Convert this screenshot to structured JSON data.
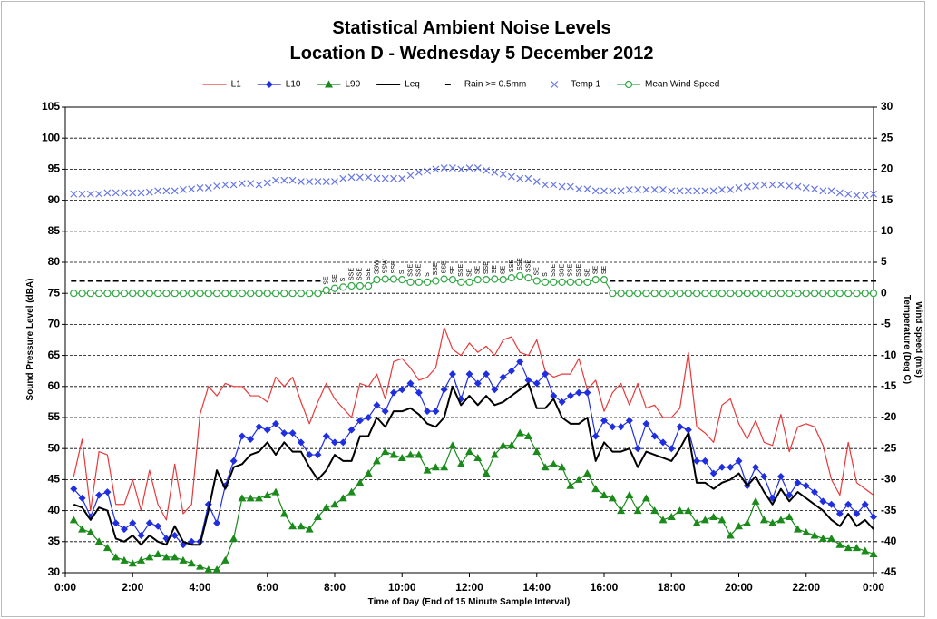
{
  "chart_data": {
    "type": "line",
    "title": "Statistical Ambient Noise Levels",
    "subtitle": "Location D - Wednesday 5 December 2012",
    "xlabel": "Time of Day (End of 15 Minute Sample Interval)",
    "ylabel": "Sound Pressure Level (dBA)",
    "y2labels": [
      "Wind Speed (m/s)",
      "Temperature (Deg C)"
    ],
    "legend": "top",
    "grid": true,
    "xlim": [
      0,
      24
    ],
    "xticks": [
      {
        "value": 0,
        "label": "0:00"
      },
      {
        "value": 2,
        "label": "2:00"
      },
      {
        "value": 4,
        "label": "4:00"
      },
      {
        "value": 6,
        "label": "6:00"
      },
      {
        "value": 8,
        "label": "8:00"
      },
      {
        "value": 10,
        "label": "10:00"
      },
      {
        "value": 12,
        "label": "12:00"
      },
      {
        "value": 14,
        "label": "14:00"
      },
      {
        "value": 16,
        "label": "16:00"
      },
      {
        "value": 18,
        "label": "18:00"
      },
      {
        "value": 20,
        "label": "20:00"
      },
      {
        "value": 22,
        "label": "22:00"
      },
      {
        "value": 24,
        "label": "0:00"
      }
    ],
    "ylim": [
      30,
      105
    ],
    "yticks": [
      30,
      35,
      40,
      45,
      50,
      55,
      60,
      65,
      70,
      75,
      80,
      85,
      90,
      95,
      100,
      105
    ],
    "y2lim": [
      -45,
      30
    ],
    "y2ticks": [
      -45,
      -40,
      -35,
      -30,
      -25,
      -20,
      -15,
      -10,
      -5,
      0,
      5,
      10,
      15,
      20,
      25,
      30
    ],
    "x": [
      0.25,
      0.5,
      0.75,
      1,
      1.25,
      1.5,
      1.75,
      2,
      2.25,
      2.5,
      2.75,
      3,
      3.25,
      3.5,
      3.75,
      4,
      4.25,
      4.5,
      4.75,
      5,
      5.25,
      5.5,
      5.75,
      6,
      6.25,
      6.5,
      6.75,
      7,
      7.25,
      7.5,
      7.75,
      8,
      8.25,
      8.5,
      8.75,
      9,
      9.25,
      9.5,
      9.75,
      10,
      10.25,
      10.5,
      10.75,
      11,
      11.25,
      11.5,
      11.75,
      12,
      12.25,
      12.5,
      12.75,
      13,
      13.25,
      13.5,
      13.75,
      14,
      14.25,
      14.5,
      14.75,
      15,
      15.25,
      15.5,
      15.75,
      16,
      16.25,
      16.5,
      16.75,
      17,
      17.25,
      17.5,
      17.75,
      18,
      18.25,
      18.5,
      18.75,
      19,
      19.25,
      19.5,
      19.75,
      20,
      20.25,
      20.5,
      20.75,
      21,
      21.25,
      21.5,
      21.75,
      22,
      22.25,
      22.5,
      22.75,
      23,
      23.25,
      23.5,
      23.75,
      24
    ],
    "series": [
      {
        "name": "L1",
        "color": "#e8393a",
        "line": true,
        "marker": "none",
        "values": [
          45.5,
          51.5,
          40,
          49.5,
          49,
          41,
          41,
          45,
          40,
          46.5,
          41,
          38.5,
          47.5,
          39.5,
          41,
          55.5,
          60,
          58.5,
          60.5,
          60,
          60,
          58.5,
          58.5,
          57.5,
          61.5,
          60,
          61.5,
          57.5,
          54,
          57.5,
          60.5,
          58,
          56.5,
          55,
          60.5,
          60,
          62,
          58,
          64,
          64.5,
          63,
          61,
          61.5,
          63,
          69.5,
          66,
          65,
          67,
          65.5,
          66.5,
          65,
          67.5,
          68,
          65.5,
          65,
          67.5,
          62.5,
          61.5,
          62,
          62,
          64.5,
          59.5,
          61,
          56,
          59,
          60.5,
          57,
          60.5,
          56.5,
          57,
          55,
          55,
          56.5,
          65.5,
          53.5,
          52.5,
          51,
          57,
          58,
          54,
          51.5,
          54.5,
          51,
          50.5,
          55.5,
          49.5,
          53.5,
          54,
          53.5,
          50.5,
          45,
          42.5,
          51,
          44.5,
          43.5,
          42.5
        ]
      },
      {
        "name": "L10",
        "color": "#1f2fe0",
        "line": true,
        "marker": "diamond",
        "values": [
          43.5,
          42,
          39,
          42.5,
          43,
          38,
          37,
          38,
          36,
          38,
          37.5,
          35.5,
          36,
          34.5,
          35,
          35,
          41,
          38,
          44,
          48,
          52,
          51.5,
          53.5,
          53,
          54,
          52.5,
          52.5,
          51,
          49,
          49,
          52,
          51,
          51,
          53,
          54.5,
          55,
          57,
          56,
          59,
          59.5,
          60.5,
          59,
          56,
          56,
          59.5,
          62,
          58,
          62,
          60.5,
          62,
          59.5,
          61.5,
          62.5,
          64,
          61,
          60.5,
          62,
          58.5,
          57.5,
          58.5,
          59,
          59,
          52,
          54.5,
          53.5,
          53.5,
          54.5,
          50,
          54,
          52,
          51,
          50,
          53.5,
          53,
          48,
          48,
          46,
          47,
          47,
          48,
          44,
          47,
          45.5,
          42,
          45.5,
          42.5,
          44.5,
          44,
          43,
          41.5,
          41,
          39.5,
          41,
          39.5,
          41,
          39
        ]
      },
      {
        "name": "L90",
        "color": "#1a8a1a",
        "line": true,
        "marker": "triangle",
        "values": [
          38.5,
          37,
          36.5,
          35,
          34,
          32.5,
          32,
          31.5,
          32,
          32.5,
          33,
          32.5,
          32.5,
          32,
          31.5,
          31,
          30.5,
          30.5,
          32,
          35.5,
          42,
          42,
          42,
          42.5,
          43,
          39.5,
          37.5,
          37.5,
          37,
          39,
          40.5,
          41,
          42,
          43,
          44.5,
          46,
          48,
          49.5,
          49,
          48.5,
          49,
          49,
          46.5,
          47,
          47,
          50.5,
          47.5,
          49.5,
          48.5,
          46,
          49,
          50.5,
          50.5,
          52.5,
          52,
          49.5,
          47,
          47.5,
          47,
          44,
          45,
          46,
          43.5,
          42.5,
          42,
          40,
          42.5,
          40,
          42,
          40,
          38.5,
          39,
          40,
          40,
          38,
          38.5,
          39,
          38.5,
          36,
          37.5,
          38,
          41.5,
          38.5,
          38,
          38.5,
          39,
          37,
          36.5,
          36,
          35.5,
          35.5,
          34.5,
          34,
          34,
          33.5,
          33
        ]
      },
      {
        "name": "Leq",
        "color": "#000000",
        "line": true,
        "marker": "none",
        "width": 2,
        "values": [
          41,
          40.5,
          38.5,
          40.5,
          40,
          35.5,
          35,
          36,
          34.5,
          36,
          35,
          34.5,
          37.5,
          35,
          34.5,
          34.5,
          40,
          46.5,
          43.5,
          47,
          47.5,
          49,
          49.5,
          51,
          49,
          51,
          49.5,
          49.5,
          47,
          45,
          46.5,
          49,
          48,
          48,
          52,
          52,
          55,
          53.5,
          56,
          56,
          56.5,
          55.5,
          54,
          53.5,
          55,
          60,
          57,
          58.5,
          57,
          58.5,
          57,
          57.5,
          58.5,
          59.5,
          60.5,
          56.5,
          56.5,
          58,
          55,
          54,
          54,
          55,
          48,
          51,
          49.5,
          49.5,
          50,
          47,
          49.5,
          49,
          48.5,
          48,
          50,
          52.5,
          44.5,
          44.5,
          43.5,
          44.5,
          45,
          46,
          44,
          45.5,
          43,
          41,
          43.5,
          41.5,
          43,
          42,
          41,
          40,
          38.5,
          37.5,
          39.5,
          37.5,
          38.5,
          37
        ]
      },
      {
        "name": "Rain >= 0.5mm",
        "color": "#000000",
        "line": false,
        "marker": "dash",
        "values": [
          77,
          77,
          77,
          77,
          77,
          77,
          77,
          77,
          77,
          77,
          77,
          77,
          77,
          77,
          77,
          77,
          77,
          77,
          77,
          77,
          77,
          77,
          77,
          77,
          77,
          77,
          77,
          77,
          77,
          77,
          null,
          null,
          null,
          null,
          null,
          null,
          null,
          null,
          null,
          null,
          null,
          null,
          null,
          null,
          null,
          null,
          null,
          null,
          null,
          null,
          null,
          null,
          null,
          null,
          null,
          null,
          null,
          null,
          null,
          null,
          null,
          null,
          null,
          null,
          77,
          77,
          77,
          77,
          77,
          77,
          77,
          77,
          77,
          77,
          77,
          77,
          77,
          77,
          77,
          77,
          77,
          77,
          77,
          77,
          77,
          77,
          77,
          77,
          77,
          77,
          77,
          77,
          77,
          77,
          77,
          77
        ]
      },
      {
        "name": "Temp 1",
        "color": "#6676e6",
        "axis": "y2",
        "line": false,
        "marker": "x",
        "values": [
          16,
          16,
          16,
          16,
          16.2,
          16.2,
          16.2,
          16.2,
          16.2,
          16.3,
          16.5,
          16.5,
          16.5,
          16.7,
          16.8,
          17,
          17,
          17.3,
          17.5,
          17.5,
          17.7,
          17.7,
          17.5,
          17.8,
          18.2,
          18.2,
          18.2,
          18,
          18,
          18,
          18,
          18,
          18.5,
          18.7,
          18.7,
          18.7,
          18.5,
          18.5,
          18.5,
          18.5,
          19,
          19.5,
          19.7,
          20,
          20.2,
          20.2,
          20,
          20.2,
          20.2,
          19.8,
          19.5,
          19.2,
          18.8,
          18.5,
          18.5,
          18,
          17.5,
          17.5,
          17.2,
          17.2,
          16.8,
          16.8,
          16.5,
          16.5,
          16.5,
          16.5,
          16.7,
          16.7,
          16.7,
          16.7,
          16.7,
          16.5,
          16.5,
          16.5,
          16.5,
          16.5,
          16.5,
          16.7,
          16.7,
          17,
          17.2,
          17.3,
          17.5,
          17.5,
          17.5,
          17.3,
          17.2,
          17,
          16.8,
          16.5,
          16.5,
          16.2,
          16,
          15.8,
          15.8,
          16
        ]
      },
      {
        "name": "Mean Wind Speed",
        "color": "#33a845",
        "axis": "y2",
        "line": true,
        "marker": "circle",
        "values": [
          0,
          0,
          0,
          0,
          0,
          0,
          0,
          0,
          0,
          0,
          0,
          0,
          0,
          0,
          0,
          0,
          0,
          0,
          0,
          0,
          0,
          0,
          0,
          0,
          0,
          0,
          0,
          0,
          0,
          0,
          0.5,
          0.8,
          1,
          1.2,
          1.2,
          1.2,
          2.2,
          2.3,
          2.3,
          2.2,
          1.8,
          1.8,
          1.8,
          2,
          2.3,
          2.2,
          1.8,
          1.8,
          2.2,
          2.2,
          2.3,
          2.2,
          2.5,
          2.8,
          2.5,
          2,
          1.8,
          1.8,
          1.8,
          1.8,
          1.8,
          1.8,
          2.2,
          2.2,
          0,
          0,
          0,
          0,
          0,
          0,
          0,
          0,
          0,
          0,
          0,
          0,
          0,
          0,
          0,
          0,
          0,
          0,
          0,
          0,
          0,
          0,
          0,
          0,
          0,
          0,
          0,
          0,
          0,
          0,
          0,
          0
        ],
        "direction_labels": [
          null,
          null,
          null,
          null,
          null,
          null,
          null,
          null,
          null,
          null,
          null,
          null,
          null,
          null,
          null,
          null,
          null,
          null,
          null,
          null,
          null,
          null,
          null,
          null,
          null,
          null,
          null,
          null,
          null,
          null,
          "SE",
          "SE",
          "S",
          "SSE",
          "SSE",
          "SSE",
          "SSW",
          "SSW",
          "SSE",
          "S",
          "SSE",
          "SSE",
          "S",
          "SSE",
          "SSE",
          "SE",
          "SSE",
          "SE",
          "SE",
          "SSE",
          "SE",
          "SE",
          "SSE",
          "SSE",
          "SSE",
          "SE",
          "S",
          "SSE",
          "SSE",
          "SSE",
          "SSE",
          "SE",
          "SE",
          "SE",
          null,
          null,
          null,
          null,
          null,
          null,
          null,
          null,
          null,
          null,
          null,
          null,
          null,
          null,
          null,
          null,
          null,
          null,
          null,
          null,
          null,
          null,
          null,
          null,
          null,
          null,
          null,
          null,
          null,
          null,
          null,
          null
        ]
      }
    ]
  }
}
